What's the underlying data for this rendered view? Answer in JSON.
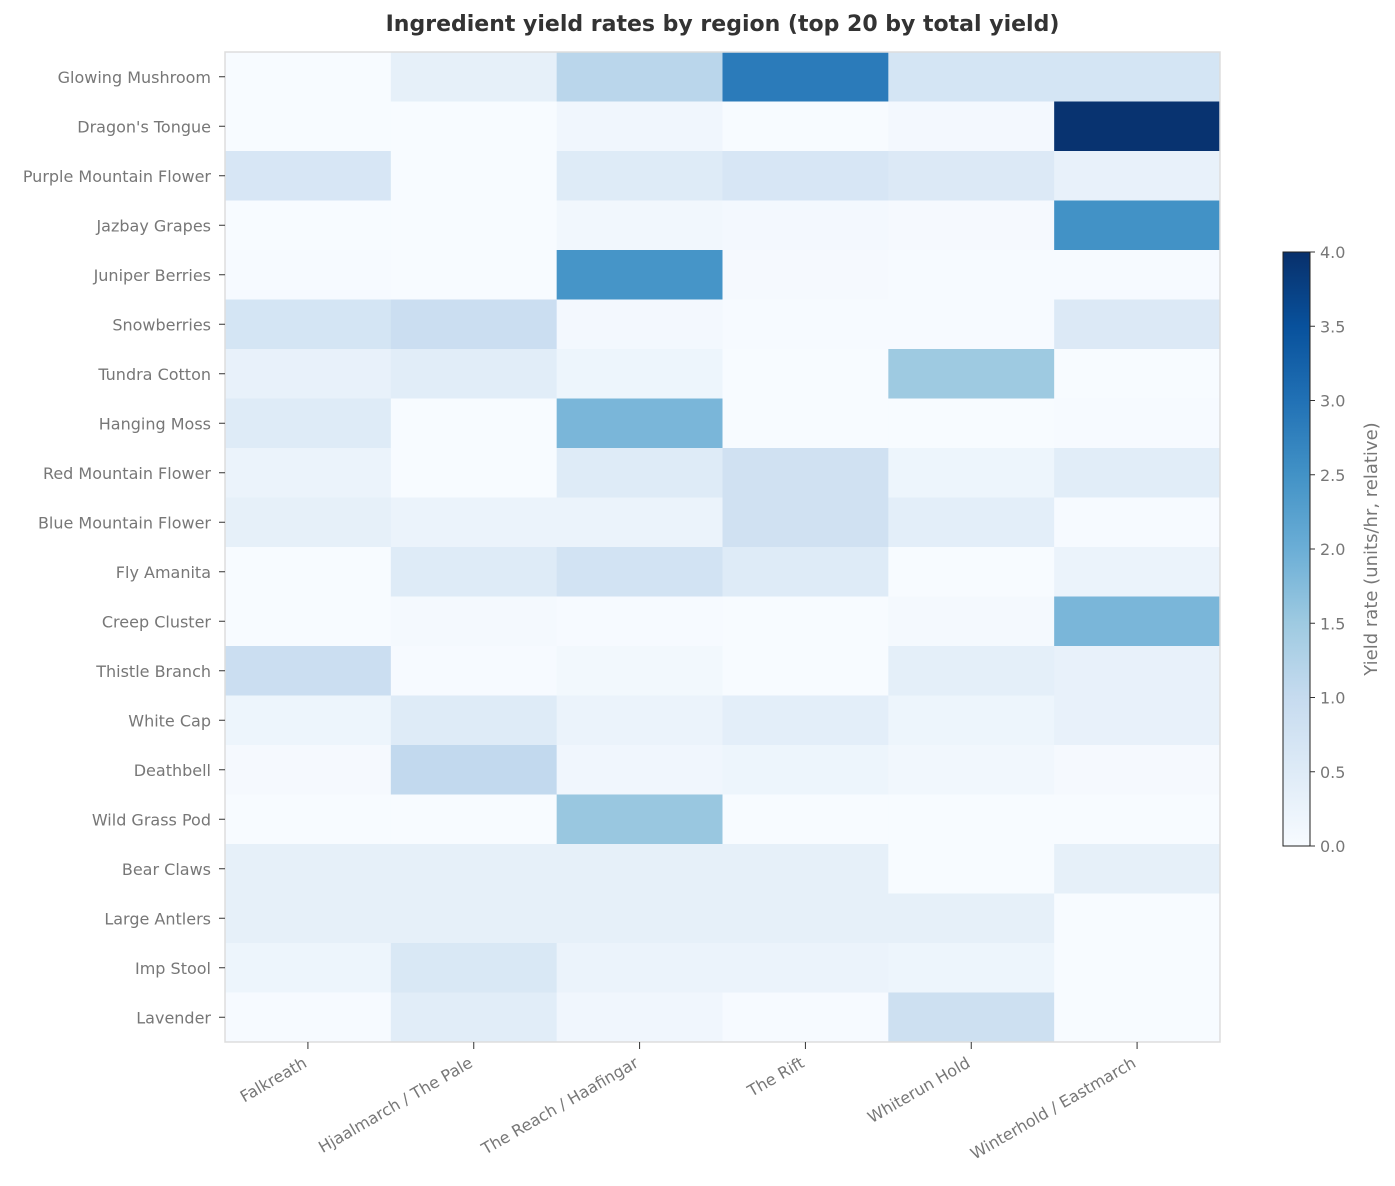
{
  "chart_data": {
    "type": "heatmap",
    "title": "Ingredient yield rates by region (top 20 by total yield)",
    "colormap": "Blues",
    "xlabels": [
      "Falkreath",
      "Hjaalmarch / The Pale",
      "The Reach / Haafingar",
      "The Rift",
      "Whiterun Hold",
      "Winterhold / Eastmarch"
    ],
    "ylabels": [
      "Glowing Mushroom",
      "Dragon's Tongue",
      "Purple Mountain Flower",
      "Jazbay Grapes",
      "Juniper Berries",
      "Snowberries",
      "Tundra Cotton",
      "Hanging Moss",
      "Red Mountain Flower",
      "Blue Mountain Flower",
      "Fly Amanita",
      "Creep Cluster",
      "Thistle Branch",
      "White Cap",
      "Deathbell",
      "Wild Grass Pod",
      "Bear Claws",
      "Large Antlers",
      "Imp Stool",
      "Lavender"
    ],
    "values": [
      [
        0,
        0.35,
        1.15,
        2.85,
        0.7,
        0.7
      ],
      [
        0,
        0,
        0.15,
        0,
        0.08,
        3.95
      ],
      [
        0.65,
        0,
        0.5,
        0.65,
        0.55,
        0.3
      ],
      [
        0,
        0,
        0.12,
        0.08,
        0.05,
        2.5
      ],
      [
        0.03,
        0,
        2.45,
        0.05,
        0.02,
        0.02
      ],
      [
        0.7,
        0.9,
        0.08,
        0.02,
        0.02,
        0.55
      ],
      [
        0.3,
        0.45,
        0.2,
        0,
        1.5,
        0
      ],
      [
        0.5,
        0,
        1.85,
        0,
        0,
        0.03
      ],
      [
        0.25,
        0,
        0.5,
        0.8,
        0.2,
        0.45
      ],
      [
        0.35,
        0.25,
        0.25,
        0.8,
        0.4,
        0.03
      ],
      [
        0,
        0.5,
        0.75,
        0.5,
        0,
        0.25
      ],
      [
        0,
        0.06,
        0.03,
        0,
        0.06,
        1.85
      ],
      [
        0.9,
        0.02,
        0.1,
        0,
        0.38,
        0.3
      ],
      [
        0.2,
        0.5,
        0.25,
        0.4,
        0.2,
        0.3
      ],
      [
        0.05,
        1.05,
        0.15,
        0.2,
        0.12,
        0.05
      ],
      [
        0,
        0,
        1.55,
        0,
        0,
        0
      ],
      [
        0.35,
        0.35,
        0.35,
        0.35,
        0,
        0.35
      ],
      [
        0.35,
        0.35,
        0.35,
        0.35,
        0.35,
        0
      ],
      [
        0.2,
        0.6,
        0.25,
        0.25,
        0.2,
        0
      ],
      [
        0.03,
        0.45,
        0.15,
        0.03,
        0.85,
        0
      ]
    ],
    "colorbar": {
      "label": "Yield rate (units/hr, relative)",
      "range": [
        0,
        4
      ],
      "ticks": [
        "0.0",
        "0.5",
        "1.0",
        "1.5",
        "2.0",
        "2.5",
        "3.0",
        "3.5",
        "4.0"
      ]
    }
  }
}
